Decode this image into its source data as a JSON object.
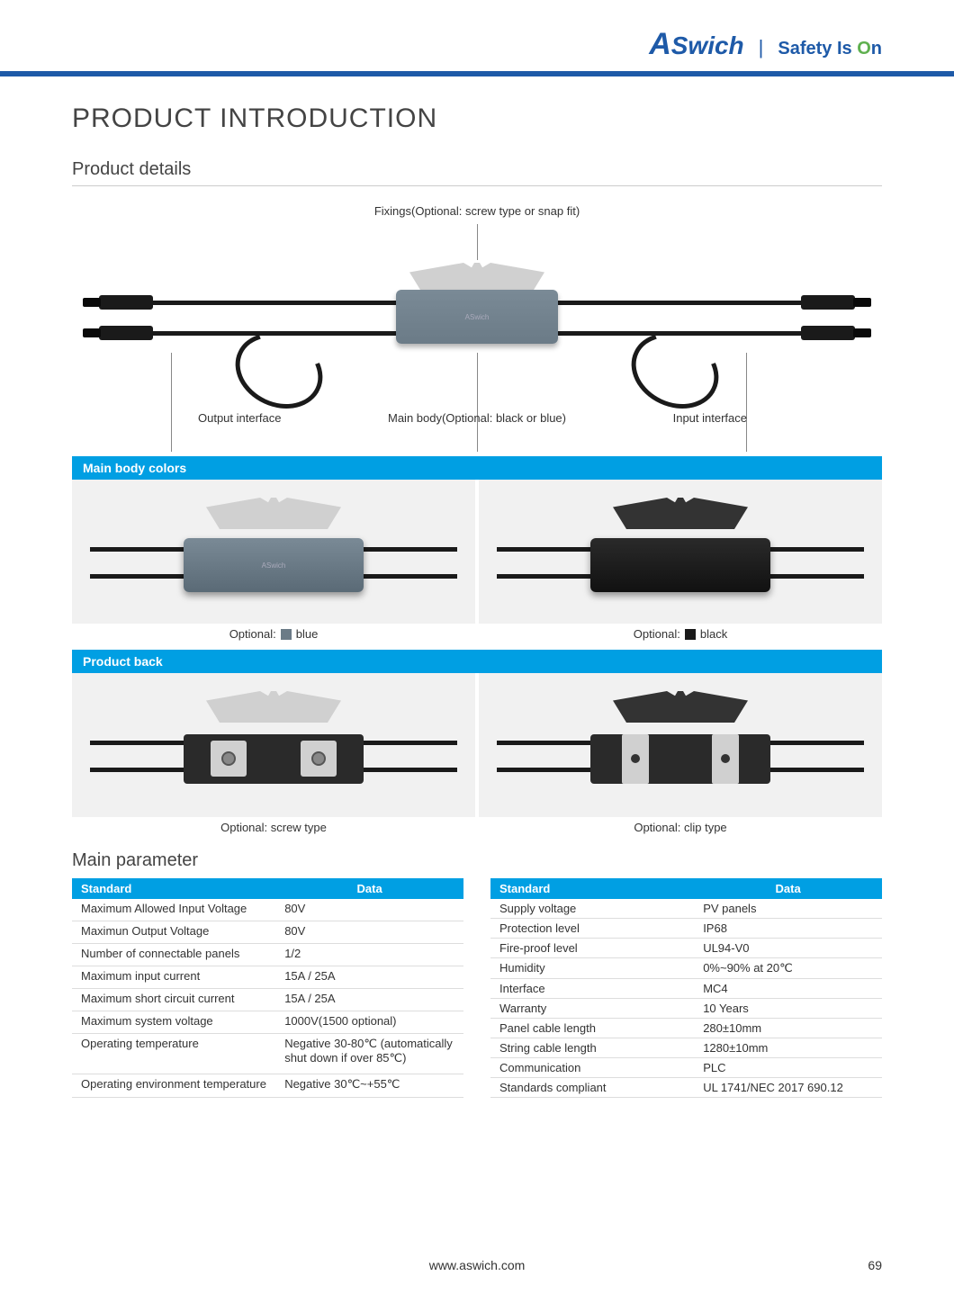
{
  "brand": {
    "name": "ASwich",
    "tagline_pre": "Safety Is ",
    "tagline_o": "O",
    "tagline_post": "n"
  },
  "colors": {
    "brand_blue": "#1e5aa8",
    "accent_blue": "#009fe3",
    "green": "#5fb04f"
  },
  "heading": "PRODUCT INTRODUCTION",
  "sub1": "Product details",
  "diagram": {
    "fixings": "Fixings(Optional: screw type or snap fit)",
    "output": "Output interface",
    "mainbody": "Main body(Optional: black or blue)",
    "input": "Input interface"
  },
  "section_colors": "Main body colors",
  "opt_prefix": "Optional: ",
  "opt_blue": "blue",
  "opt_black": "black",
  "section_back": "Product back",
  "opt_screw": "Optional: screw type",
  "opt_clip": "Optional: clip type",
  "sub2": "Main parameter",
  "table_headers": {
    "standard": "Standard",
    "data": "Data"
  },
  "table1": [
    {
      "s": "Maximum Allowed Input Voltage",
      "d": "80V"
    },
    {
      "s": "Maximun Output Voltage",
      "d": "80V"
    },
    {
      "s": "Number of connectable panels",
      "d": "1/2"
    },
    {
      "s": "Maximum input current",
      "d": "15A / 25A"
    },
    {
      "s": "Maximum short circuit current",
      "d": "15A / 25A"
    },
    {
      "s": "Maximum system voltage",
      "d": "1000V(1500 optional)"
    },
    {
      "s": "Operating temperature",
      "d": "Negative 30-80℃ (automatically shut down if over 85℃)"
    },
    {
      "s": "Operating environment temperature",
      "d": "Negative 30℃~+55℃"
    }
  ],
  "table2": [
    {
      "s": "Supply voltage",
      "d": "PV panels"
    },
    {
      "s": "Protection level",
      "d": "IP68"
    },
    {
      "s": "Fire-proof level",
      "d": "UL94-V0"
    },
    {
      "s": "Humidity",
      "d": "0%~90% at 20℃"
    },
    {
      "s": "Interface",
      "d": "MC4"
    },
    {
      "s": "Warranty",
      "d": "10 Years"
    },
    {
      "s": "Panel cable length",
      "d": "280±10mm"
    },
    {
      "s": "String cable length",
      "d": "1280±10mm"
    },
    {
      "s": "Communication",
      "d": "PLC"
    },
    {
      "s": "Standards compliant",
      "d": "UL 1741/NEC 2017 690.12"
    }
  ],
  "footer_url": "www.aswich.com",
  "page_number": "69"
}
